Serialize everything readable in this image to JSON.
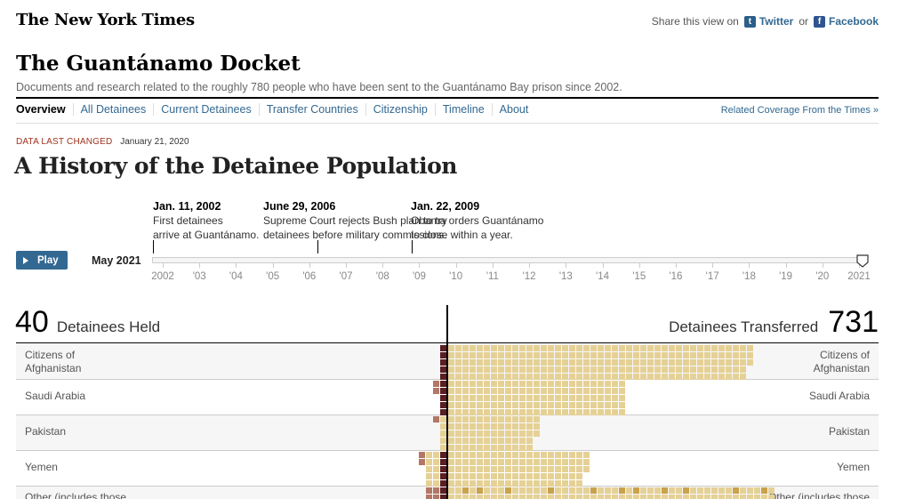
{
  "header": {
    "logo": "The New York Times",
    "share_prefix": "Share this view on",
    "twitter": "Twitter",
    "or": "or",
    "facebook": "Facebook",
    "twitter_icon": "twitter-icon",
    "facebook_icon": "facebook-icon"
  },
  "docket": {
    "title": "The Guantánamo Docket",
    "subtitle": "Documents and research related to the roughly 780 people who have been sent to the Guantánamo Bay prison since 2002."
  },
  "nav": {
    "items": [
      "Overview",
      "All Detainees",
      "Current Detainees",
      "Transfer Countries",
      "Citizenship",
      "Timeline",
      "About"
    ],
    "related": "Related Coverage From the Times »"
  },
  "meta": {
    "changed_label": "DATA LAST CHANGED",
    "changed_date": "January 21, 2020"
  },
  "page_title": "A History of the Detainee Population",
  "timeline": {
    "events": [
      {
        "date": "Jan. 11, 2002",
        "line1": "First detainees",
        "line2": "arrive at Guantánamo."
      },
      {
        "date": "June 29, 2006",
        "line1": "Supreme Court rejects Bush plan to try",
        "line2": "detainees before military commissions."
      },
      {
        "date": "Jan. 22, 2009",
        "line1": "Obama orders Guantánamo",
        "line2": "to close within a year."
      }
    ],
    "play_label": "Play",
    "current_date": "May 2021",
    "years": [
      "2002",
      "'03",
      "'04",
      "'05",
      "'06",
      "'07",
      "'08",
      "'09",
      "'10",
      "'11",
      "'12",
      "'13",
      "'14",
      "'15",
      "'16",
      "'17",
      "'18",
      "'19",
      "'20",
      "2021"
    ],
    "position_fraction": 1.0
  },
  "totals": {
    "held_count": "40",
    "held_label": "Detainees Held",
    "transferred_label": "Detainees Transferred",
    "transferred_count": "731"
  },
  "rows": [
    {
      "left": "Citizens of\nAfghanistan",
      "right": "Citizens of\nAfghanistan"
    },
    {
      "left": "Saudi Arabia",
      "right": "Saudi Arabia"
    },
    {
      "left": "Pakistan",
      "right": "Pakistan"
    },
    {
      "left": "Yemen",
      "right": "Yemen"
    },
    {
      "left": "Other (includes those",
      "right": "Other (includes those"
    }
  ],
  "colors": {
    "link": "#326891",
    "held_dark": "#5b1e22",
    "held_mauve": "#b27766",
    "transferred": "#e8d6a3",
    "transferred_ochre": "#c9a24c"
  }
}
